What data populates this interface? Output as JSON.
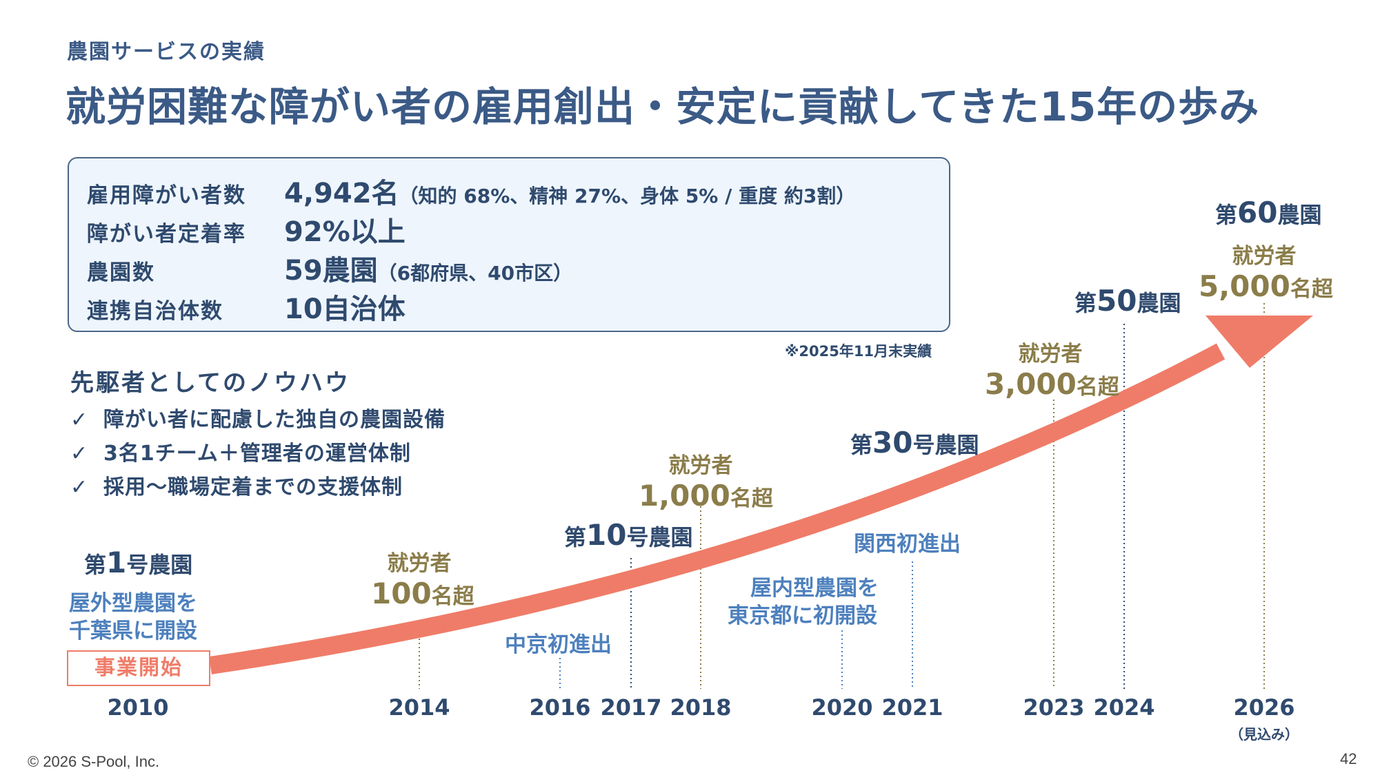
{
  "header": {
    "subtitle": "農園サービスの実績",
    "title": "就労困難な障がい者の雇用創出・安定に貢献してきた15年の歩み"
  },
  "stats": [
    {
      "label": "雇用障がい者数",
      "value": "4,942名",
      "detail": "（知的 68%、精神 27%、身体 5% / 重度 約3割）"
    },
    {
      "label": "障がい者定着率",
      "value": "92%以上",
      "detail": ""
    },
    {
      "label": "農園数",
      "value": "59農園",
      "detail": "（6都府県、40市区）"
    },
    {
      "label": "連携自治体数",
      "value": "10自治体",
      "detail": ""
    }
  ],
  "note": "※2025年11月末実績",
  "knowhow": {
    "title": "先駆者としてのノウハウ",
    "check": "✓",
    "items": [
      "障がい者に配慮した独自の農園設備",
      "3名1チーム＋管理者の運営体制",
      "採用〜職場定着までの支援体制"
    ]
  },
  "timeline": {
    "start_label": "事業開始",
    "years": [
      {
        "year": "2010",
        "note": ""
      },
      {
        "year": "2014",
        "note": ""
      },
      {
        "year": "2016",
        "note": ""
      },
      {
        "year": "2017",
        "note": ""
      },
      {
        "year": "2018",
        "note": ""
      },
      {
        "year": "2020",
        "note": ""
      },
      {
        "year": "2021",
        "note": ""
      },
      {
        "year": "2023",
        "note": ""
      },
      {
        "year": "2024",
        "note": ""
      },
      {
        "year": "2026",
        "note": "（見込み）"
      }
    ],
    "farm1": {
      "prefix": "第",
      "num": "1",
      "suffix": "号農園",
      "desc1": "屋外型農園を",
      "desc2": "千葉県に開設"
    },
    "workers100": {
      "label": "就労者",
      "num": "100",
      "unit": "名超"
    },
    "chukyo": "中京初進出",
    "farm10": {
      "prefix": "第",
      "num": "10",
      "suffix": "号農園"
    },
    "workers1000": {
      "label": "就労者",
      "num": "1,000",
      "unit": "名超"
    },
    "indoor": {
      "line1": "屋内型農園を",
      "line2": "東京都に初開設"
    },
    "kansai": "関西初進出",
    "farm30": {
      "prefix": "第",
      "num": "30",
      "suffix": "号農園"
    },
    "workers3000": {
      "label": "就労者",
      "num": "3,000",
      "unit": "名超"
    },
    "farm50": {
      "prefix": "第",
      "num": "50",
      "suffix": "農園"
    },
    "farm60": {
      "prefix": "第",
      "num": "60",
      "suffix": "農園"
    },
    "workers5000": {
      "label": "就労者",
      "num": "5,000",
      "unit": "名超"
    }
  },
  "colors": {
    "arrow": "#ef7c68",
    "navy": "#2f4a6e",
    "blue": "#4d80bd",
    "gold": "#8b7d4a"
  },
  "footer": {
    "copyright": "© 2026 S-Pool, Inc.",
    "page": "42"
  }
}
